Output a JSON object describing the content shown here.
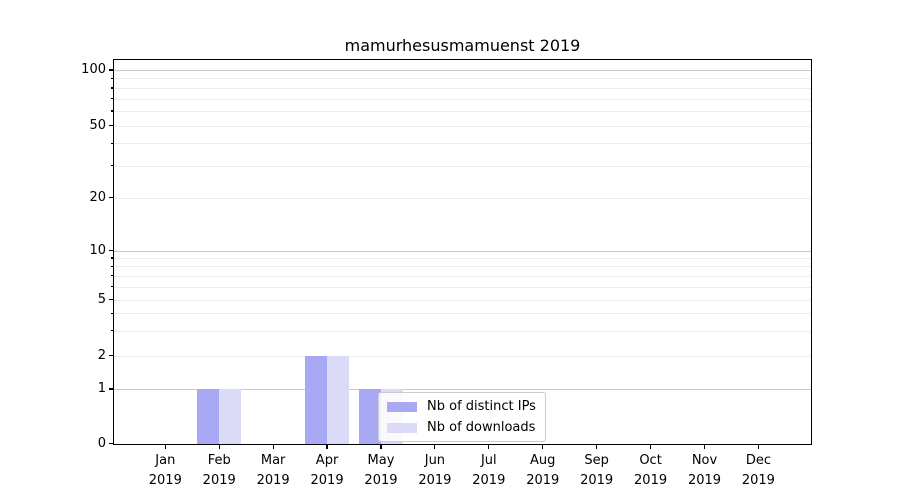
{
  "title": "mamurhesusmamuenst 2019",
  "chart_data": {
    "type": "bar",
    "title": "mamurhesusmamuenst 2019",
    "categories": [
      "Jan 2019",
      "Feb 2019",
      "Mar 2019",
      "Apr 2019",
      "May 2019",
      "Jun 2019",
      "Jul 2019",
      "Aug 2019",
      "Sep 2019",
      "Oct 2019",
      "Nov 2019",
      "Dec 2019"
    ],
    "series": [
      {
        "name": "Nb of distinct IPs",
        "color": "#a8a8f5",
        "values": [
          0,
          1,
          0,
          2,
          1,
          0,
          0,
          0,
          0,
          0,
          0,
          0
        ]
      },
      {
        "name": "Nb of downloads",
        "color": "#dbdbf8",
        "values": [
          0,
          1,
          0,
          2,
          1,
          0,
          0,
          0,
          0,
          0,
          0,
          0
        ]
      }
    ],
    "xlabel": "",
    "ylabel": "",
    "y_axis": {
      "scale": "symlog",
      "ticks": [
        0,
        1,
        2,
        5,
        10,
        20,
        50,
        100
      ],
      "minor_ticks": [
        3,
        4,
        6,
        7,
        8,
        9,
        30,
        40,
        60,
        70,
        80,
        90
      ],
      "decade_ticks": [
        1,
        10,
        100
      ],
      "range": [
        0,
        110
      ]
    },
    "grid": {
      "horizontal": true,
      "vertical": false
    },
    "legend": {
      "position": "lower center",
      "entries": [
        "Nb of distinct IPs",
        "Nb of downloads"
      ]
    },
    "colors": {
      "major_grid": "#c8c8c8",
      "minor_grid": "#ededed",
      "spine": "#000000",
      "background": "#ffffff",
      "text": "#000000"
    }
  }
}
